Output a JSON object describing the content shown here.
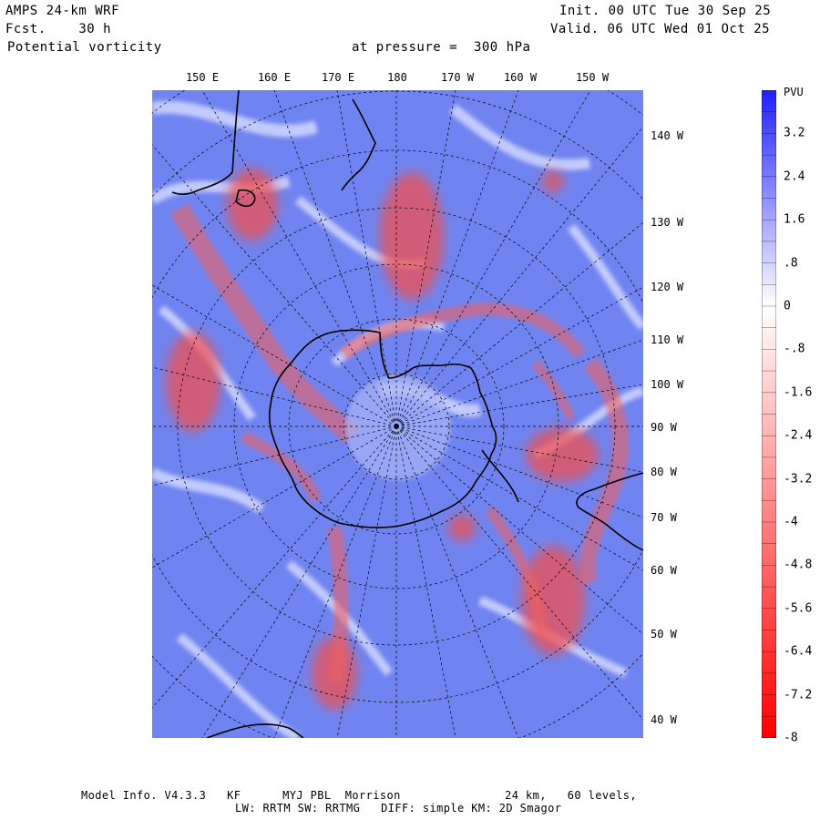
{
  "header": {
    "model": "AMPS 24-km WRF",
    "fcst_label": "Fcst.",
    "fcst_value": "30 h",
    "variable": "Potential vorticity",
    "init": "Init. 00 UTC Tue 30 Sep 25",
    "valid": "Valid. 06 UTC Wed 01 Oct 25",
    "level_label": "at pressure =",
    "level_value": "300 hPa"
  },
  "lon_labels_top": [
    "150 E",
    "160 E",
    "170 E",
    "180",
    "170 W",
    "160 W",
    "150 W"
  ],
  "lon_labels_right": [
    "140 W",
    "130 W",
    "120 W",
    "110 W",
    "100 W",
    "90 W",
    "80 W",
    "70 W",
    "60 W",
    "50 W",
    "40 W"
  ],
  "colorbar": {
    "units": "PVU",
    "labels": [
      "3.2",
      "2.4",
      "1.6",
      ".8",
      "0",
      "-.8",
      "-1.6",
      "-2.4",
      "-3.2",
      "-4",
      "-4.8",
      "-5.6",
      "-6.4",
      "-7.2",
      "-8"
    ],
    "max": 4,
    "min": -8,
    "color_high": "#2020ff",
    "color_mid": "#ffffff",
    "color_low": "#ff0000"
  },
  "footer": {
    "line1": "Model Info. V4.3.3   KF      MYJ PBL  Morrison               24 km,   60 levels,",
    "line2": "LW: RRTM SW: RRTMG   DIFF: simple KM: 2D Smagor"
  },
  "colors": {
    "background": "#6f84f0",
    "positive_pv": "#f05050",
    "coastline": "#000000"
  }
}
